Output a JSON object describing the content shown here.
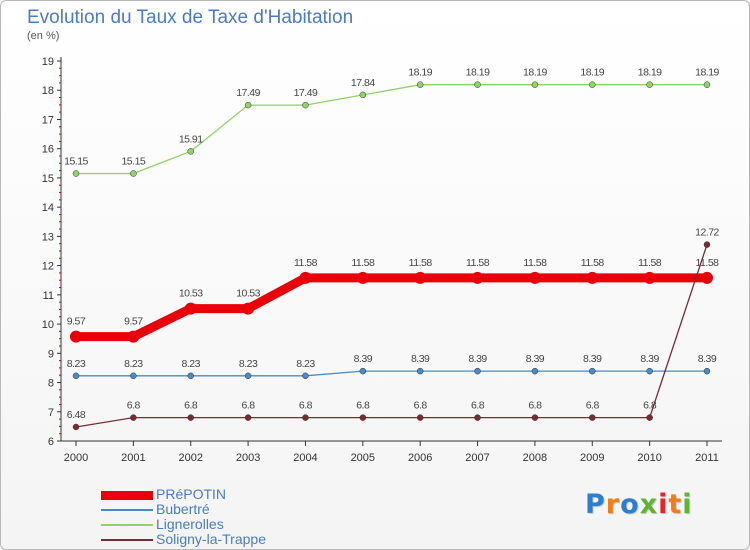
{
  "header": {
    "title": "Evolution du Taux de Taxe d'Habitation",
    "unit": "(en %)"
  },
  "logo": {
    "letters": [
      "P",
      "r",
      "o",
      "x",
      "i",
      "t",
      "i"
    ],
    "colors": [
      "#2a7fd0",
      "#f07d1a",
      "#2a7fd0",
      "#5cb531",
      "#e6252b",
      "#f07d1a",
      "#5cb531"
    ]
  },
  "chart_data": {
    "type": "line",
    "x": [
      "2000",
      "2001",
      "2002",
      "2003",
      "2004",
      "2005",
      "2006",
      "2007",
      "2008",
      "2009",
      "2010",
      "2011"
    ],
    "ylim": [
      6,
      19
    ],
    "yticks": [
      "6",
      "7",
      "8",
      "9",
      "10",
      "11",
      "12",
      "13",
      "14",
      "15",
      "16",
      "17",
      "18",
      "19"
    ],
    "grid": false,
    "legend_position": "bottom-left",
    "series": [
      {
        "name": "PRéPOTIN",
        "color": "#e8000b",
        "values": [
          9.57,
          9.57,
          10.53,
          10.53,
          11.58,
          11.58,
          11.58,
          11.58,
          11.58,
          11.58,
          11.58,
          11.58
        ],
        "labels": [
          "9.57",
          "9.57",
          "10.53",
          "10.53",
          "11.58",
          "11.58",
          "11.58",
          "11.58",
          "11.58",
          "11.58",
          "11.58",
          "11.58"
        ]
      },
      {
        "name": "Bubertré",
        "color": "#4a8ac9",
        "values": [
          8.23,
          8.23,
          8.23,
          8.23,
          8.23,
          8.39,
          8.39,
          8.39,
          8.39,
          8.39,
          8.39,
          8.39
        ],
        "labels": [
          "8.23",
          "8.23",
          "8.23",
          "8.23",
          "8.23",
          "8.39",
          "8.39",
          "8.39",
          "8.39",
          "8.39",
          "8.39",
          "8.39"
        ]
      },
      {
        "name": "Lignerolles",
        "color": "#8fd26a",
        "values": [
          15.15,
          15.15,
          15.91,
          17.49,
          17.49,
          17.84,
          18.19,
          18.19,
          18.19,
          18.19,
          18.19,
          18.19
        ],
        "labels": [
          "15.15",
          "15.15",
          "15.91",
          "17.49",
          "17.49",
          "17.84",
          "18.19",
          "18.19",
          "18.19",
          "18.19",
          "18.19",
          "18.19"
        ]
      },
      {
        "name": "Soligny-la-Trappe",
        "color": "#7b2b2f",
        "values": [
          6.48,
          6.8,
          6.8,
          6.8,
          6.8,
          6.8,
          6.8,
          6.8,
          6.8,
          6.8,
          6.8,
          12.72
        ],
        "labels": [
          "6.48",
          "6.8",
          "6.8",
          "6.8",
          "6.8",
          "6.8",
          "6.8",
          "6.8",
          "6.8",
          "6.8",
          "6.8",
          "12.72"
        ]
      }
    ]
  }
}
